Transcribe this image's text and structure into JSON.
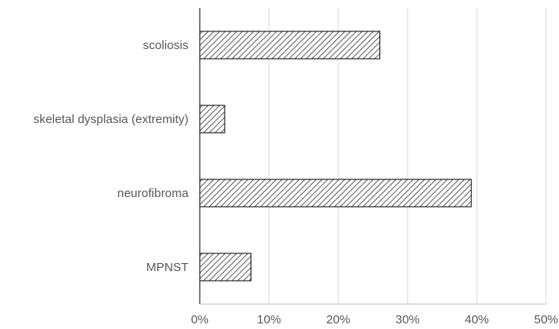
{
  "chart_data": {
    "type": "bar",
    "orientation": "horizontal",
    "categories": [
      "scoliosis",
      "skeletal dysplasia (extremity)",
      "neurofibroma",
      "MPNST"
    ],
    "values": [
      0.26,
      0.036,
      0.392,
      0.074
    ],
    "xlim": [
      0,
      0.5
    ],
    "x_ticks": [
      0,
      0.1,
      0.2,
      0.3,
      0.4,
      0.5
    ],
    "x_tick_labels": [
      "0%",
      "10%",
      "20%",
      "30%",
      "40%",
      "50%"
    ],
    "title": "",
    "xlabel": "",
    "ylabel": "",
    "grid": "vertical",
    "legend": "none",
    "bar_fill": "diagonal-hatch",
    "colors": {
      "bar_stroke": "#000000",
      "hatch": "#333333",
      "grid": "#d9d9d9",
      "axis": "#000000",
      "text": "#595959"
    }
  }
}
